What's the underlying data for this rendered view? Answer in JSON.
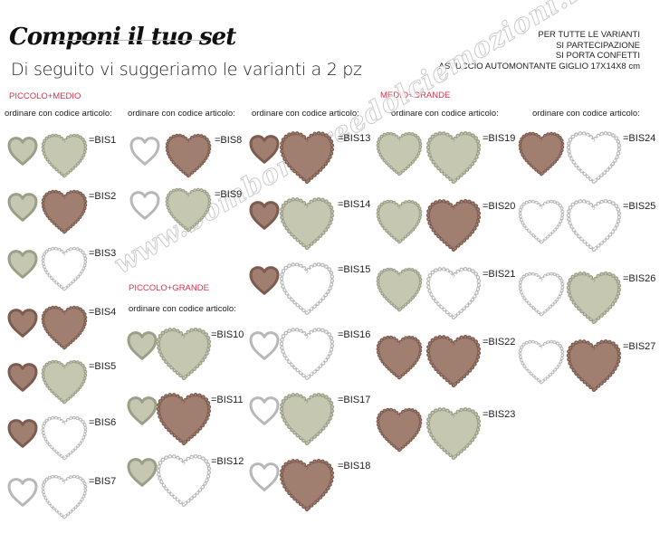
{
  "header": {
    "title": "Componi il tuo set",
    "subtitle": "Di seguito vi suggeriamo le varianti a 2 pz",
    "info_lines": [
      "PER TUTTE LE VARIANTI",
      "SI PARTECIPAZIONE",
      "SI PORTA CONFETTI",
      "ASTUCCIO AUTOMONTANTE GIGLIO 17X14X8 cm"
    ]
  },
  "sections": {
    "piccolo_medio": "PICCOLO+MEDIO",
    "piccolo_grande": "PICCOLO+GRANDE",
    "medio_grande": "MEDIO+GRANDE"
  },
  "order_label": "ordinare con codice articolo:",
  "colors": {
    "sage": {
      "fill": "#c5c7b0",
      "edge": "#9c9f88"
    },
    "brown": {
      "fill": "#a07e70",
      "edge": "#7d5c50"
    },
    "white": {
      "fill": "#ffffff",
      "edge": "#b8b8b8"
    },
    "section_accent": "#e0304a"
  },
  "sets": [
    {
      "code": "=BIS1",
      "first": {
        "size": "piccolo",
        "color": "sage"
      },
      "second": {
        "size": "medio",
        "color": "sage"
      }
    },
    {
      "code": "=BIS2",
      "first": {
        "size": "piccolo",
        "color": "sage"
      },
      "second": {
        "size": "medio",
        "color": "brown"
      }
    },
    {
      "code": "=BIS3",
      "first": {
        "size": "piccolo",
        "color": "sage"
      },
      "second": {
        "size": "medio",
        "color": "white"
      }
    },
    {
      "code": "=BIS4",
      "first": {
        "size": "piccolo",
        "color": "brown"
      },
      "second": {
        "size": "medio",
        "color": "brown"
      }
    },
    {
      "code": "=BIS5",
      "first": {
        "size": "piccolo",
        "color": "brown"
      },
      "second": {
        "size": "medio",
        "color": "sage"
      }
    },
    {
      "code": "=BIS6",
      "first": {
        "size": "piccolo",
        "color": "brown"
      },
      "second": {
        "size": "medio",
        "color": "white"
      }
    },
    {
      "code": "=BIS7",
      "first": {
        "size": "piccolo",
        "color": "white"
      },
      "second": {
        "size": "medio",
        "color": "white"
      }
    },
    {
      "code": "=BIS8",
      "first": {
        "size": "piccolo",
        "color": "white"
      },
      "second": {
        "size": "medio",
        "color": "brown"
      }
    },
    {
      "code": "=BIS9",
      "first": {
        "size": "piccolo",
        "color": "white"
      },
      "second": {
        "size": "medio",
        "color": "sage"
      }
    },
    {
      "code": "=BIS10",
      "first": {
        "size": "piccolo",
        "color": "sage"
      },
      "second": {
        "size": "grande",
        "color": "sage"
      }
    },
    {
      "code": "=BIS11",
      "first": {
        "size": "piccolo",
        "color": "sage"
      },
      "second": {
        "size": "grande",
        "color": "brown"
      }
    },
    {
      "code": "=BIS12",
      "first": {
        "size": "piccolo",
        "color": "sage"
      },
      "second": {
        "size": "grande",
        "color": "white"
      }
    },
    {
      "code": "=BIS13",
      "first": {
        "size": "piccolo",
        "color": "brown"
      },
      "second": {
        "size": "grande",
        "color": "brown"
      }
    },
    {
      "code": "=BIS14",
      "first": {
        "size": "piccolo",
        "color": "brown"
      },
      "second": {
        "size": "grande",
        "color": "sage"
      }
    },
    {
      "code": "=BIS15",
      "first": {
        "size": "piccolo",
        "color": "brown"
      },
      "second": {
        "size": "grande",
        "color": "white"
      }
    },
    {
      "code": "=BIS16",
      "first": {
        "size": "piccolo",
        "color": "white"
      },
      "second": {
        "size": "grande",
        "color": "white"
      }
    },
    {
      "code": "=BIS17",
      "first": {
        "size": "piccolo",
        "color": "white"
      },
      "second": {
        "size": "grande",
        "color": "sage"
      }
    },
    {
      "code": "=BIS18",
      "first": {
        "size": "piccolo",
        "color": "white"
      },
      "second": {
        "size": "grande",
        "color": "brown"
      }
    },
    {
      "code": "=BIS19",
      "first": {
        "size": "medio",
        "color": "sage"
      },
      "second": {
        "size": "grande",
        "color": "sage"
      }
    },
    {
      "code": "=BIS20",
      "first": {
        "size": "medio",
        "color": "sage"
      },
      "second": {
        "size": "grande",
        "color": "brown"
      }
    },
    {
      "code": "=BIS21",
      "first": {
        "size": "medio",
        "color": "sage"
      },
      "second": {
        "size": "grande",
        "color": "white"
      }
    },
    {
      "code": "=BIS22",
      "first": {
        "size": "medio",
        "color": "brown"
      },
      "second": {
        "size": "grande",
        "color": "brown"
      }
    },
    {
      "code": "=BIS23",
      "first": {
        "size": "medio",
        "color": "brown"
      },
      "second": {
        "size": "grande",
        "color": "sage"
      }
    },
    {
      "code": "=BIS24",
      "first": {
        "size": "medio",
        "color": "brown"
      },
      "second": {
        "size": "grande",
        "color": "white"
      }
    },
    {
      "code": "=BIS25",
      "first": {
        "size": "medio",
        "color": "white"
      },
      "second": {
        "size": "grande",
        "color": "white"
      }
    },
    {
      "code": "=BIS26",
      "first": {
        "size": "medio",
        "color": "white"
      },
      "second": {
        "size": "grande",
        "color": "sage"
      }
    },
    {
      "code": "=BIS27",
      "first": {
        "size": "medio",
        "color": "white"
      },
      "second": {
        "size": "grande",
        "color": "brown"
      }
    }
  ],
  "watermark": "www.bomboniereedolciemozioni.it"
}
